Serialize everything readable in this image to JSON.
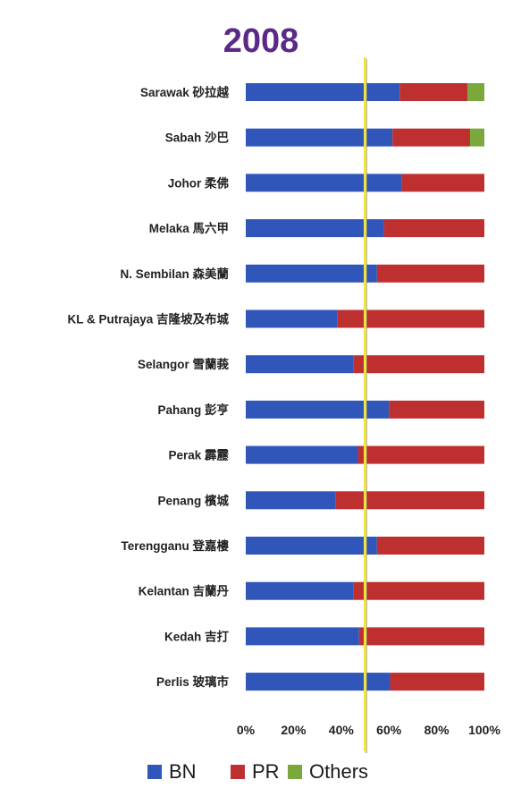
{
  "chart_data": {
    "type": "bar",
    "orientation": "horizontal",
    "stacked": "percent",
    "title": "2008",
    "categories": [
      "Sarawak 砂拉越",
      "Sabah 沙巴",
      "Johor 柔佛",
      "Melaka 馬六甲",
      "N. Sembilan 森美蘭",
      "KL & Putrajaya 吉隆坡及布城",
      "Selangor 雪蘭莪",
      "Pahang 彭亨",
      "Perak 霹靂",
      "Penang 檳城",
      "Terengganu 登嘉樓",
      "Kelantan 吉蘭丹",
      "Kedah 吉打",
      "Perlis 玻璃市"
    ],
    "series": [
      {
        "name": "BN",
        "color": "#2f56b8",
        "values": [
          64.5,
          61.5,
          65.5,
          58,
          55,
          38.5,
          45,
          60,
          47,
          37.5,
          55,
          45,
          47.5,
          60.5
        ]
      },
      {
        "name": "PR",
        "color": "#be2f2f",
        "values": [
          28.5,
          32.5,
          34.5,
          42,
          45,
          61.5,
          55,
          40,
          53,
          62.5,
          45,
          55,
          52.5,
          39.5
        ]
      },
      {
        "name": "Others",
        "color": "#7aa83a",
        "values": [
          7,
          6,
          0,
          0,
          0,
          0,
          0,
          0,
          0,
          0,
          0,
          0,
          0,
          0
        ]
      }
    ],
    "xlim": [
      0,
      100
    ],
    "xticks": [
      "0%",
      "20%",
      "40%",
      "60%",
      "80%",
      "100%"
    ],
    "reference_line": {
      "value": 50,
      "color": "#f2e53a"
    },
    "legend_position": "bottom",
    "grid": false,
    "colors": {
      "title": "#5b2a86",
      "text": "#222222"
    }
  }
}
